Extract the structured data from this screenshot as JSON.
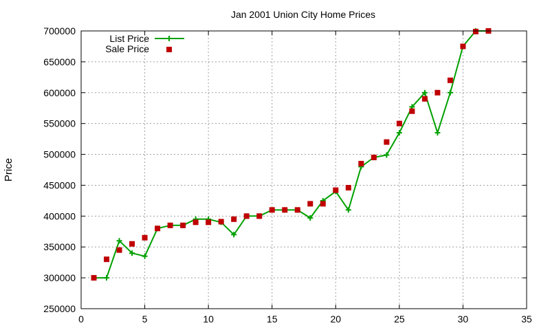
{
  "chart_data": {
    "type": "line",
    "title": "Jan 2001 Union City Home Prices",
    "xlabel": "",
    "ylabel": "Price",
    "xlim": [
      0,
      35
    ],
    "ylim": [
      250000,
      700000
    ],
    "xticks": [
      0,
      5,
      10,
      15,
      20,
      25,
      30,
      35
    ],
    "yticks": [
      250000,
      300000,
      350000,
      400000,
      450000,
      500000,
      550000,
      600000,
      650000,
      700000
    ],
    "grid": true,
    "legend_position": "top-left",
    "series": [
      {
        "name": "List Price",
        "style": "line-with-plus-markers",
        "color": "#00a000",
        "x": [
          1,
          2,
          3,
          4,
          5,
          6,
          7,
          8,
          9,
          10,
          11,
          12,
          13,
          14,
          15,
          16,
          17,
          18,
          19,
          20,
          21,
          22,
          23,
          24,
          25,
          26,
          27,
          28,
          29,
          30,
          31,
          32
        ],
        "values": [
          300000,
          300000,
          360000,
          340000,
          335000,
          380000,
          385000,
          385000,
          395000,
          395000,
          390000,
          370000,
          400000,
          400000,
          410000,
          410000,
          410000,
          397000,
          425000,
          440000,
          410000,
          480000,
          495000,
          499000,
          535000,
          577000,
          600000,
          535000,
          600000,
          675000,
          700000,
          700000
        ]
      },
      {
        "name": "Sale Price",
        "style": "square-markers",
        "color": "#c00000",
        "x": [
          1,
          2,
          3,
          4,
          5,
          6,
          7,
          8,
          9,
          10,
          11,
          12,
          13,
          14,
          15,
          16,
          17,
          18,
          19,
          20,
          21,
          22,
          23,
          24,
          25,
          26,
          27,
          28,
          29,
          30,
          31,
          32
        ],
        "values": [
          300000,
          330000,
          345000,
          355000,
          365000,
          380000,
          385000,
          385000,
          390000,
          390000,
          391000,
          395000,
          400000,
          400000,
          410000,
          410000,
          410000,
          420000,
          420000,
          442000,
          446000,
          485000,
          495000,
          520000,
          550000,
          570000,
          590000,
          600000,
          620000,
          675000,
          699000,
          700000
        ]
      }
    ]
  }
}
